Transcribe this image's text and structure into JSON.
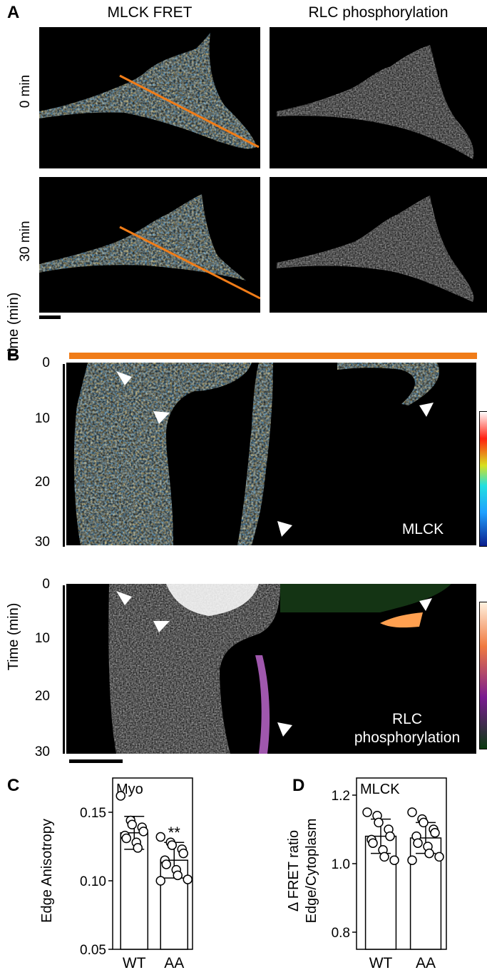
{
  "panelA": {
    "letter": "A",
    "col_titles": [
      "MLCK FRET",
      "RLC phosphorylation"
    ],
    "row_labels": [
      "0 min",
      "30 min"
    ]
  },
  "panelB": {
    "letter": "B",
    "ylabel": "Time (min)",
    "yticks": [
      "0",
      "10",
      "20",
      "30"
    ],
    "kymo1_label": "MLCK",
    "kymo2_label_line1": "RLC",
    "kymo2_label_line2": "phosphorylation"
  },
  "panelC": {
    "letter": "C"
  },
  "panelD": {
    "letter": "D"
  },
  "colors": {
    "orange_line": "#f07c18",
    "bar_fill": "#ffffff",
    "image_bg": "#000000"
  },
  "chart_data": [
    {
      "type": "bar",
      "inset_label": "Myo",
      "ylabel": "Edge Anisotropy",
      "categories": [
        "WT",
        "AA"
      ],
      "values": [
        0.135,
        0.115
      ],
      "error": [
        0.012,
        0.013
      ],
      "ylim": [
        0.05,
        0.175
      ],
      "yticks": [
        "0.05",
        "0.10",
        "0.15"
      ],
      "significance": [
        "",
        "**"
      ],
      "points": [
        [
          0.162,
          0.144,
          0.141,
          0.139,
          0.136,
          0.133,
          0.131,
          0.128,
          0.124
        ],
        [
          0.132,
          0.128,
          0.126,
          0.123,
          0.12,
          0.115,
          0.112,
          0.108,
          0.104,
          0.101,
          0.1
        ]
      ]
    },
    {
      "type": "bar",
      "inset_label": "MLCK",
      "ylabel_line1": "Δ FRET ratio",
      "ylabel_line2": "Edge/Cytoplasm",
      "categories": [
        "WT",
        "AA"
      ],
      "values": [
        1.08,
        1.075
      ],
      "error": [
        0.05,
        0.045
      ],
      "ylim": [
        0.75,
        1.25
      ],
      "yticks": [
        "0.8",
        "1.0",
        "1.2"
      ],
      "significance": [
        "",
        ""
      ],
      "points": [
        [
          1.15,
          1.14,
          1.12,
          1.1,
          1.08,
          1.07,
          1.06,
          1.04,
          1.02,
          1.01
        ],
        [
          1.15,
          1.13,
          1.12,
          1.1,
          1.09,
          1.08,
          1.06,
          1.05,
          1.03,
          1.02,
          1.01
        ]
      ]
    }
  ]
}
